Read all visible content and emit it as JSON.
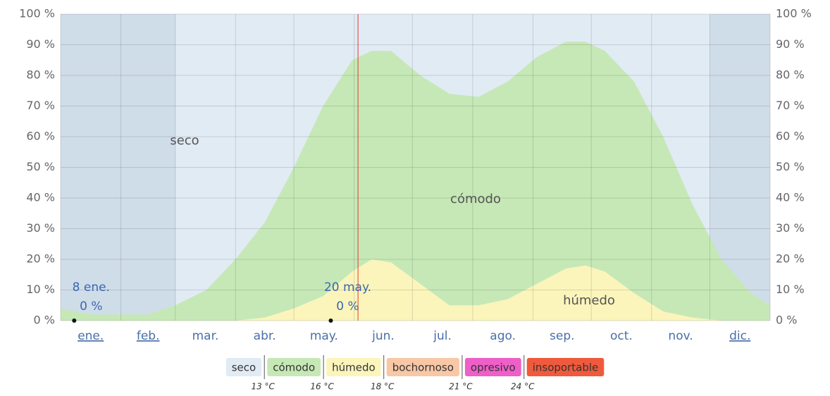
{
  "chart_data": {
    "type": "stacked_area",
    "xlim": [
      0,
      365
    ],
    "ylim": [
      0,
      100
    ],
    "yticks": [
      {
        "value": 0,
        "label": "0 %"
      },
      {
        "value": 10,
        "label": "10 %"
      },
      {
        "value": 20,
        "label": "20 %"
      },
      {
        "value": 30,
        "label": "30 %"
      },
      {
        "value": 40,
        "label": "40 %"
      },
      {
        "value": 50,
        "label": "50 %"
      },
      {
        "value": 60,
        "label": "60 %"
      },
      {
        "value": 70,
        "label": "70 %"
      },
      {
        "value": 80,
        "label": "80 %"
      },
      {
        "value": 90,
        "label": "90 %"
      },
      {
        "value": 100,
        "label": "100 %"
      }
    ],
    "grid": true,
    "categories": [
      "ene.",
      "feb.",
      "mar.",
      "abr.",
      "may.",
      "jun.",
      "jul.",
      "ago.",
      "sep.",
      "oct.",
      "nov.",
      "dic."
    ],
    "month_starts": [
      0,
      31,
      59,
      90,
      120,
      151,
      181,
      212,
      243,
      273,
      304,
      334,
      365
    ],
    "linked_months": [
      0,
      1,
      11
    ],
    "shaded_ranges": [
      [
        0,
        59
      ],
      [
        334,
        365
      ]
    ],
    "marker_x": 153,
    "x": [
      0,
      15,
      31,
      45,
      59,
      75,
      90,
      105,
      120,
      135,
      150,
      160,
      170,
      185,
      200,
      215,
      230,
      245,
      260,
      270,
      280,
      295,
      310,
      325,
      340,
      355,
      365
    ],
    "series": [
      {
        "name": "húmedo",
        "color": "#fbf5bb",
        "values": [
          0,
          0,
          0,
          0,
          0,
          0,
          0,
          1,
          4,
          8,
          16,
          20,
          19,
          12,
          5,
          5,
          7,
          12,
          17,
          18,
          16,
          9,
          3,
          1,
          0,
          0,
          0
        ]
      },
      {
        "name": "cómodo",
        "color": "#c6e8b6",
        "values": [
          4,
          2,
          2,
          2,
          5,
          10,
          20,
          31,
          46,
          62,
          69,
          68,
          69,
          68,
          69,
          68,
          71,
          74,
          74,
          73,
          72,
          69,
          57,
          37,
          20,
          9,
          5
        ]
      }
    ],
    "area_labels": [
      "seco",
      "cómodo",
      "húmedo"
    ],
    "annotations": [
      {
        "x": 7,
        "value": 0,
        "date": "8 ene.",
        "value_label": "0 %"
      },
      {
        "x": 139,
        "value": 0,
        "date": "20 may.",
        "value_label": "0 %"
      }
    ],
    "legend": {
      "items": [
        {
          "name": "seco",
          "color": "#e1ebf4"
        },
        {
          "name": "cómodo",
          "color": "#c6e8b6"
        },
        {
          "name": "húmedo",
          "color": "#fbf5bb"
        },
        {
          "name": "bochornoso",
          "color": "#f7c7a6"
        },
        {
          "name": "opresivo",
          "color": "#ee5fc8"
        },
        {
          "name": "insoportable",
          "color": "#f05a3c"
        }
      ],
      "thresholds": [
        "13 °C",
        "16 °C",
        "18 °C",
        "21 °C",
        "24 °C"
      ]
    }
  }
}
